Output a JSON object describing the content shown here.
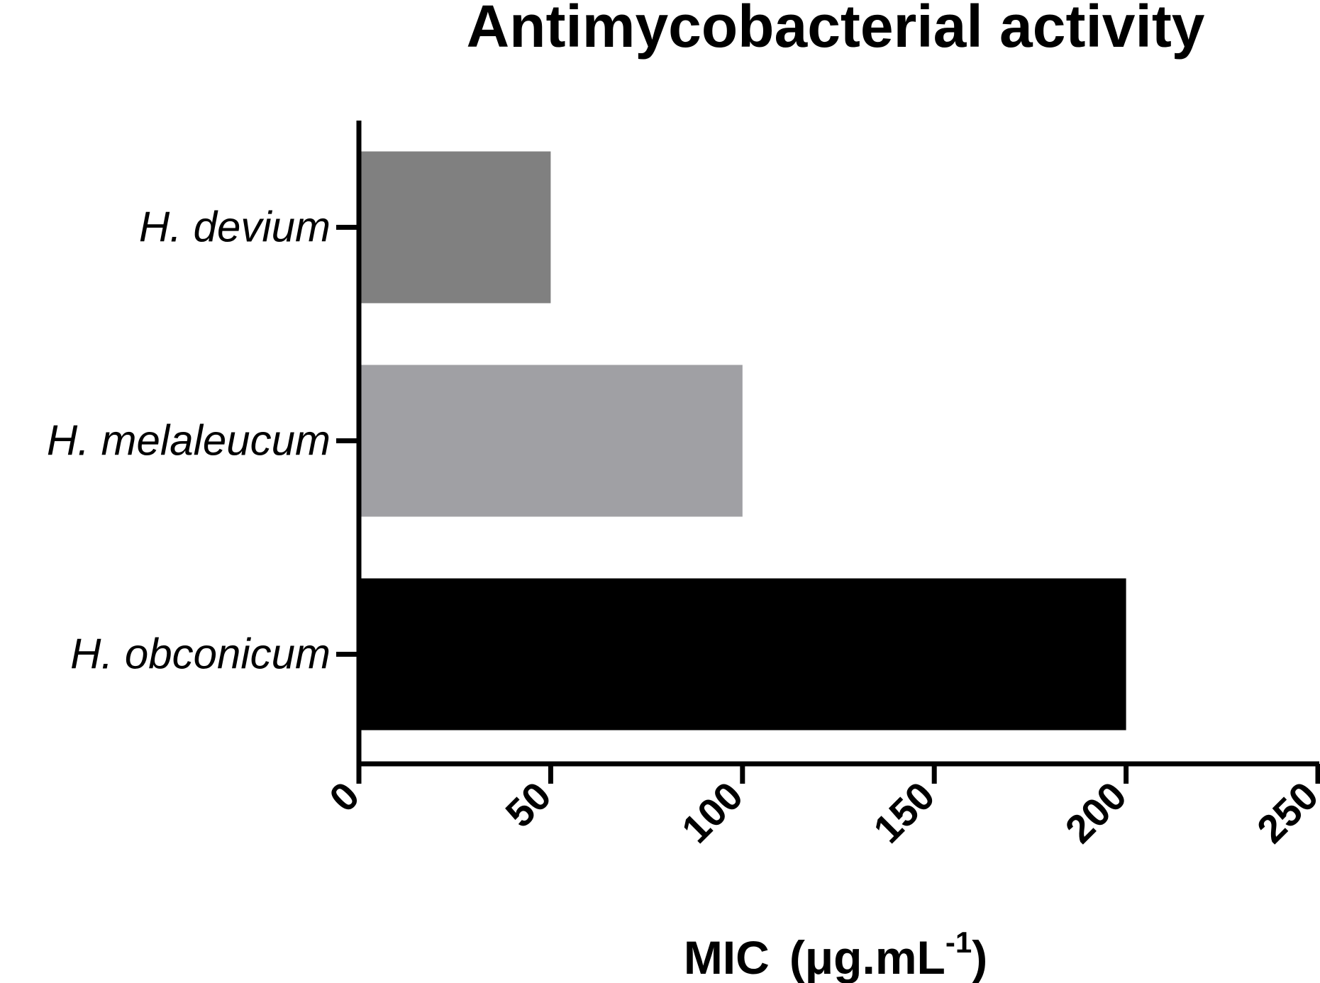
{
  "chart_data": {
    "type": "bar",
    "orientation": "horizontal",
    "title": "Antimycobacterial activity",
    "xlabel_main": "MIC",
    "xlabel_unit": "(μg.mL",
    "xlabel_sup": "-1",
    "xlabel_close": ")",
    "ylabel": "",
    "categories": [
      "H. devium",
      "H. melaleucum",
      "H. obconicum"
    ],
    "values": [
      50,
      100,
      200
    ],
    "bar_colors": [
      "#808080",
      "#a0a0a4",
      "#000000"
    ],
    "xlim": [
      0,
      250
    ],
    "xticks": [
      0,
      50,
      100,
      150,
      200,
      250
    ],
    "xtick_labels": [
      "0",
      "50",
      "100",
      "150",
      "200",
      "250"
    ],
    "grid": false,
    "legend": "none"
  }
}
